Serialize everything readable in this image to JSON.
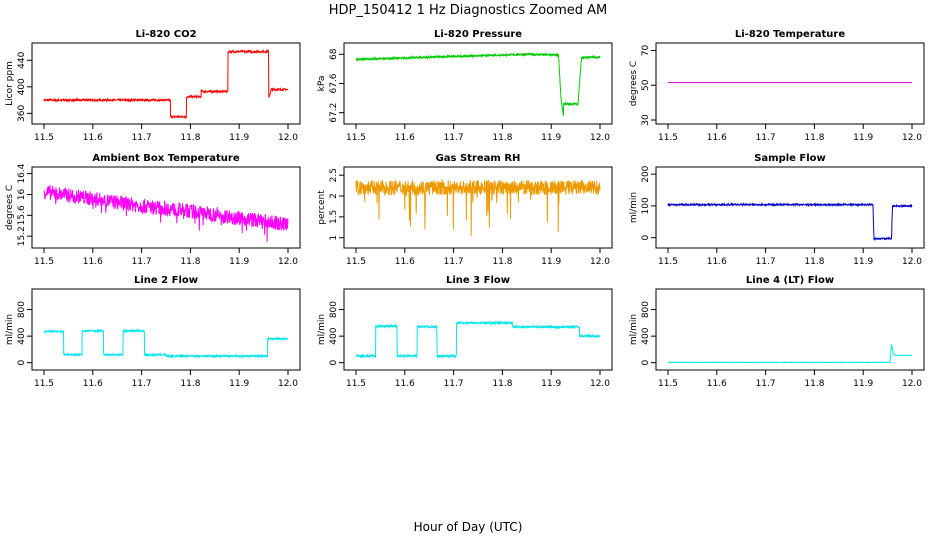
{
  "figure": {
    "title": "HDP_150412  1 Hz Diagnostics Zoomed AM",
    "xlabel": "Hour of Day (UTC)"
  },
  "chart_data": [
    {
      "type": "line",
      "title": "Li-820 CO2",
      "ylabel": "Licor ppm",
      "color": "#ff0000",
      "xlim": [
        11.5,
        12.0
      ],
      "xticks": [
        11.5,
        11.6,
        11.7,
        11.8,
        11.9,
        12.0
      ],
      "ylim": [
        350,
        460
      ],
      "yticks": [
        360,
        400,
        440
      ],
      "series": [
        {
          "x": [
            11.5,
            11.759,
            11.759,
            11.792,
            11.792,
            11.822,
            11.822,
            11.877,
            11.877,
            11.96,
            11.96,
            11.966,
            11.97,
            12.0
          ],
          "y": [
            380,
            380,
            355,
            355,
            385,
            385,
            393,
            393,
            453,
            453,
            383,
            396,
            396,
            396
          ]
        }
      ],
      "noise": 1.5
    },
    {
      "type": "line",
      "title": "Li-820 Pressure",
      "ylabel": "kPa",
      "color": "#00cc00",
      "xlim": [
        11.5,
        12.0
      ],
      "xticks": [
        11.5,
        11.6,
        11.7,
        11.8,
        11.9,
        12.0
      ],
      "ylim": [
        67.1,
        68.1
      ],
      "yticks": [
        67.2,
        67.6,
        68.0
      ],
      "series": [
        {
          "x": [
            11.5,
            11.6,
            11.7,
            11.8,
            11.85,
            11.915,
            11.92,
            11.925,
            11.925,
            11.935,
            11.955,
            11.955,
            11.962,
            11.962,
            11.97,
            12.0
          ],
          "y": [
            67.93,
            67.95,
            67.97,
            67.99,
            68.0,
            67.99,
            67.4,
            67.15,
            67.32,
            67.32,
            67.32,
            67.32,
            67.95,
            67.95,
            67.96,
            67.96
          ]
        }
      ],
      "noise": 0.012
    },
    {
      "type": "line",
      "title": "Li-820 Temperature",
      "ylabel": "degrees C",
      "color": "#cc00cc",
      "xlim": [
        11.5,
        12.0
      ],
      "xticks": [
        11.5,
        11.6,
        11.7,
        11.8,
        11.9,
        12.0
      ],
      "ylim": [
        30,
        72
      ],
      "yticks": [
        30,
        50,
        70
      ],
      "series": [
        {
          "x": [
            11.5,
            12.0
          ],
          "y": [
            51.5,
            51.5
          ]
        }
      ],
      "noise": 0
    },
    {
      "type": "line",
      "title": "Ambient Box Temperature",
      "ylabel": "degrees C",
      "color": "#ff00ff",
      "xlim": [
        11.5,
        12.0
      ],
      "xticks": [
        11.5,
        11.6,
        11.7,
        11.8,
        11.9,
        12.0
      ],
      "ylim": [
        15.05,
        16.45
      ],
      "yticks": [
        15.2,
        15.6,
        16.0,
        16.4
      ],
      "series": [
        {
          "x": [
            11.5,
            11.6,
            11.7,
            11.8,
            11.9,
            12.0
          ],
          "y": [
            16.05,
            15.92,
            15.78,
            15.68,
            15.55,
            15.42
          ]
        }
      ],
      "noise": 0.14
    },
    {
      "type": "line",
      "title": "Gas Stream RH",
      "ylabel": "percent",
      "color": "#ee9900",
      "xlim": [
        11.5,
        12.0
      ],
      "xticks": [
        11.5,
        11.6,
        11.7,
        11.8,
        11.9,
        12.0
      ],
      "ylim": [
        0.85,
        2.6
      ],
      "yticks": [
        1.0,
        1.5,
        2.0,
        2.5
      ],
      "series": [
        {
          "x": [
            11.5,
            12.0
          ],
          "y": [
            2.2,
            2.2
          ]
        }
      ],
      "noise": 0.18
    },
    {
      "type": "line",
      "title": "Sample Flow",
      "ylabel": "ml/min",
      "color": "#0000cc",
      "xlim": [
        11.5,
        12.0
      ],
      "xticks": [
        11.5,
        11.6,
        11.7,
        11.8,
        11.9,
        12.0
      ],
      "ylim": [
        -20,
        210
      ],
      "yticks": [
        0,
        100,
        200
      ],
      "series": [
        {
          "x": [
            11.5,
            11.92,
            11.922,
            11.958,
            11.96,
            12.0
          ],
          "y": [
            104,
            104,
            -3,
            -3,
            100,
            100
          ]
        }
      ],
      "noise": 2.5
    },
    {
      "type": "line",
      "title": "Line 2 Flow",
      "ylabel": "ml/min",
      "color": "#00e5ee",
      "xlim": [
        11.5,
        12.0
      ],
      "xticks": [
        11.5,
        11.6,
        11.7,
        11.8,
        11.9,
        12.0
      ],
      "ylim": [
        -50,
        1050
      ],
      "yticks": [
        0,
        400,
        800
      ],
      "series": [
        {
          "x": [
            11.5,
            11.54,
            11.54,
            11.578,
            11.578,
            11.622,
            11.622,
            11.662,
            11.662,
            11.706,
            11.706,
            11.75,
            11.75,
            11.958,
            11.958,
            12.0
          ],
          "y": [
            470,
            470,
            120,
            120,
            480,
            480,
            120,
            120,
            480,
            480,
            120,
            120,
            100,
            100,
            360,
            360
          ]
        }
      ],
      "noise": 12
    },
    {
      "type": "line",
      "title": "Line 3 Flow",
      "ylabel": "ml/min",
      "color": "#00e5ee",
      "xlim": [
        11.5,
        12.0
      ],
      "xticks": [
        11.5,
        11.6,
        11.7,
        11.8,
        11.9,
        12.0
      ],
      "ylim": [
        -50,
        1050
      ],
      "yticks": [
        0,
        400,
        800
      ],
      "series": [
        {
          "x": [
            11.5,
            11.54,
            11.54,
            11.584,
            11.584,
            11.625,
            11.625,
            11.666,
            11.666,
            11.706,
            11.706,
            11.82,
            11.82,
            11.958,
            11.958,
            12.0
          ],
          "y": [
            100,
            100,
            550,
            550,
            100,
            100,
            540,
            540,
            100,
            100,
            600,
            600,
            540,
            540,
            400,
            400
          ]
        }
      ],
      "noise": 15
    },
    {
      "type": "line",
      "title": "Line 4 (LT) Flow",
      "ylabel": "ml/min",
      "color": "#00e5ee",
      "xlim": [
        11.5,
        12.0
      ],
      "xticks": [
        11.5,
        11.6,
        11.7,
        11.8,
        11.9,
        12.0
      ],
      "ylim": [
        -50,
        1050
      ],
      "yticks": [
        0,
        400,
        800
      ],
      "series": [
        {
          "x": [
            11.5,
            11.955,
            11.958,
            11.962,
            11.966,
            12.0
          ],
          "y": [
            5,
            5,
            280,
            130,
            110,
            110
          ]
        }
      ],
      "noise": 3
    }
  ]
}
